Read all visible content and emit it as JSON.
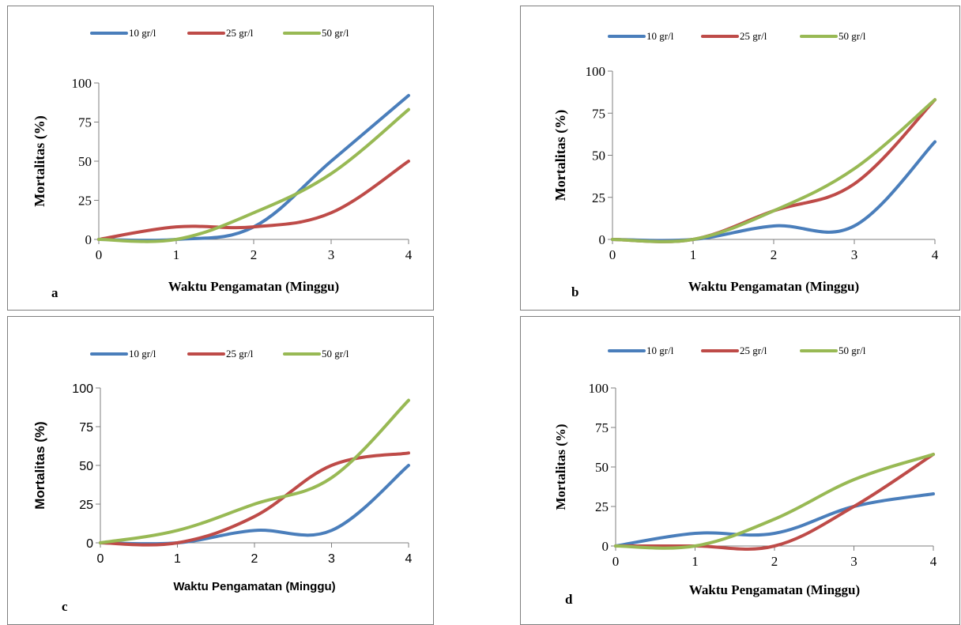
{
  "colors": {
    "10 gr/l": "#4a7ebb",
    "25 gr/l": "#be4b48",
    "50 gr/l": "#98b954"
  },
  "chart_data": [
    {
      "type": "line",
      "panel_label": "a",
      "xlabel": "Waktu Pengamatan (Minggu)",
      "ylabel": "Mortalitas (%)",
      "x": [
        0,
        1,
        2,
        3,
        4
      ],
      "xticks": [
        "0",
        "1",
        "2",
        "3",
        "4"
      ],
      "yticks": [
        "0",
        "25",
        "50",
        "75",
        "100"
      ],
      "xlim": [
        0,
        4
      ],
      "ylim": [
        0,
        100
      ],
      "legend_position": "top",
      "series": [
        {
          "name": "10 gr/l",
          "values": [
            0,
            0,
            8,
            50,
            92
          ]
        },
        {
          "name": "25 gr/l",
          "values": [
            0,
            8,
            8,
            17,
            50
          ]
        },
        {
          "name": "50 gr/l",
          "values": [
            0,
            0,
            17,
            42,
            83
          ]
        }
      ]
    },
    {
      "type": "line",
      "panel_label": "b",
      "xlabel": "Waktu Pengamatan (Minggu)",
      "ylabel": "Mortalitas (%)",
      "x": [
        0,
        1,
        2,
        3,
        4
      ],
      "xticks": [
        "0",
        "1",
        "2",
        "3",
        "4"
      ],
      "yticks": [
        "0",
        "25",
        "50",
        "75",
        "100"
      ],
      "xlim": [
        0,
        4
      ],
      "ylim": [
        0,
        100
      ],
      "legend_position": "top",
      "series": [
        {
          "name": "10 gr/l",
          "values": [
            0,
            0,
            8,
            8,
            58
          ]
        },
        {
          "name": "25 gr/l",
          "values": [
            0,
            0,
            17,
            33,
            83
          ]
        },
        {
          "name": "50 gr/l",
          "values": [
            0,
            0,
            17,
            42,
            83
          ]
        }
      ]
    },
    {
      "type": "line",
      "panel_label": "c",
      "xlabel": "Waktu Pengamatan (Minggu)",
      "ylabel": "Mortalitas (%)",
      "x": [
        0,
        1,
        2,
        3,
        4
      ],
      "xticks": [
        "0",
        "1",
        "2",
        "3",
        "4"
      ],
      "yticks": [
        "0",
        "25",
        "50",
        "75",
        "100"
      ],
      "xlim": [
        0,
        4
      ],
      "ylim": [
        0,
        100
      ],
      "legend_position": "top",
      "series": [
        {
          "name": "10 gr/l",
          "values": [
            0,
            0,
            8,
            8,
            50
          ]
        },
        {
          "name": "25 gr/l",
          "values": [
            0,
            0,
            17,
            50,
            58
          ]
        },
        {
          "name": "50 gr/l",
          "values": [
            0,
            8,
            25,
            42,
            92
          ]
        }
      ]
    },
    {
      "type": "line",
      "panel_label": "d",
      "xlabel": "Waktu Pengamatan (Minggu)",
      "ylabel": "Mortalitas (%)",
      "x": [
        0,
        1,
        2,
        3,
        4
      ],
      "xticks": [
        "0",
        "1",
        "2",
        "3",
        "4"
      ],
      "yticks": [
        "0",
        "25",
        "50",
        "75",
        "100"
      ],
      "xlim": [
        0,
        4
      ],
      "ylim": [
        0,
        100
      ],
      "legend_position": "top",
      "series": [
        {
          "name": "10 gr/l",
          "values": [
            0,
            8,
            8,
            25,
            33
          ]
        },
        {
          "name": "25 gr/l",
          "values": [
            0,
            0,
            0,
            25,
            58
          ]
        },
        {
          "name": "50 gr/l",
          "values": [
            0,
            0,
            17,
            42,
            58
          ]
        }
      ]
    }
  ]
}
